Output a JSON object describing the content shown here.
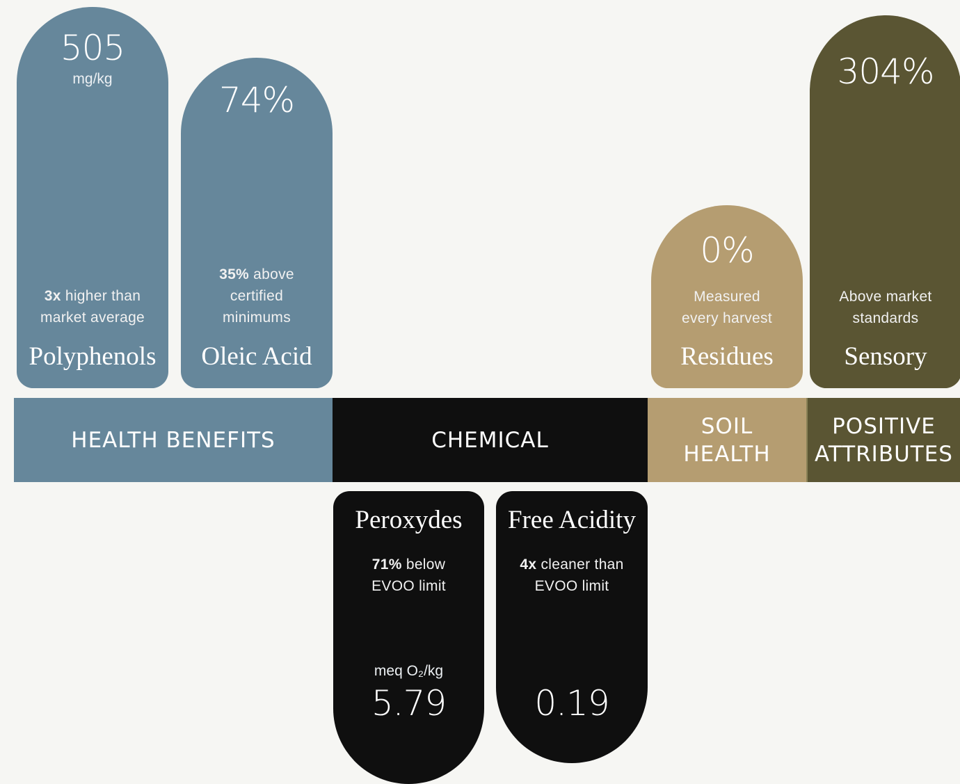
{
  "health_benefits": {
    "band_label": "HEALTH BENEFITS",
    "polyphenols": {
      "value": "505",
      "unit": "mg/kg",
      "desc_bold": "3x",
      "desc_rest_1": " higher than",
      "desc_line_2": "market average",
      "label": "Polyphenols"
    },
    "oleic_acid": {
      "value": "74%",
      "desc_bold": "35%",
      "desc_rest_1": " above",
      "desc_line_2": "certified",
      "desc_line_3": "minimums",
      "label": "Oleic Acid"
    }
  },
  "chemical": {
    "band_label": "CHEMICAL",
    "peroxydes": {
      "label": "Peroxydes",
      "desc_bold": "71%",
      "desc_rest_1": " below",
      "desc_line_2": "EVOO limit",
      "unit": "meq O₂/kg",
      "value": "5.79"
    },
    "free_acidity": {
      "label": "Free Acidity",
      "desc_bold": "4x",
      "desc_rest_1": " cleaner than",
      "desc_line_2": "EVOO limit",
      "value": "0.19"
    }
  },
  "soil_health": {
    "band_label_line_1": "SOIL",
    "band_label_line_2": "HEALTH",
    "residues": {
      "value": "0%",
      "desc_line_1": "Measured",
      "desc_line_2": "every harvest",
      "label": "Residues"
    }
  },
  "positive_attributes": {
    "band_label_line_1": "POSITIVE",
    "band_label_line_2": "ATTRIBUTES",
    "sensory": {
      "value": "304%",
      "desc_line_1": "Above market",
      "desc_line_2": "standards",
      "label": "Sensory"
    }
  },
  "colors": {
    "health": "#66879b",
    "chemical": "#0f0f0f",
    "soil": "#b59d71",
    "positive": "#5a5533",
    "background": "#f6f6f3"
  }
}
